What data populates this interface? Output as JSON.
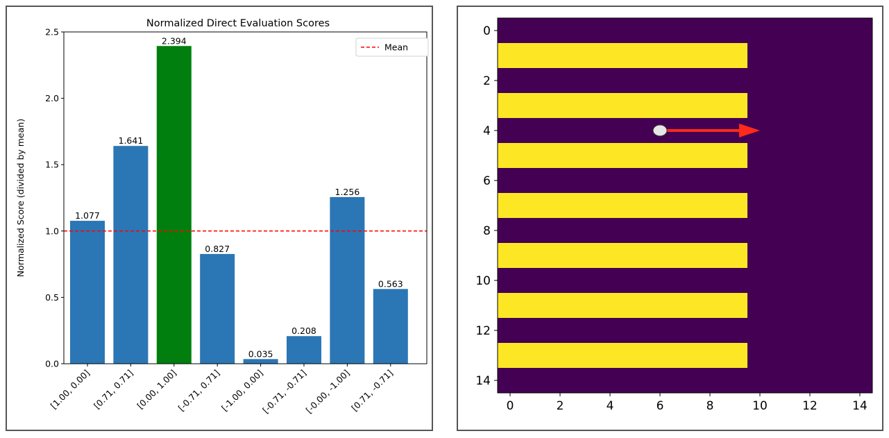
{
  "chart_data": [
    {
      "type": "bar",
      "title": "Normalized Direct Evaluation Scores",
      "xlabel": "",
      "ylabel": "Normalized Score (divided by mean)",
      "categories": [
        "[1.00, 0.00]",
        "[0.71, 0.71]",
        "[0.00, 1.00]",
        "[-0.71, 0.71]",
        "[-1.00, 0.00]",
        "[-0.71, -0.71]",
        "[-0.00, -1.00]",
        "[0.71, -0.71]"
      ],
      "values": [
        1.077,
        1.641,
        2.394,
        0.827,
        0.035,
        0.208,
        1.256,
        0.563
      ],
      "value_labels": [
        "1.077",
        "1.641",
        "2.394",
        "0.827",
        "0.035",
        "0.208",
        "1.256",
        "0.563"
      ],
      "colors": [
        "#2b76b4",
        "#2b76b4",
        "#007f0e",
        "#2b76b4",
        "#2b76b4",
        "#2b76b4",
        "#2b76b4",
        "#2b76b4"
      ],
      "ylim": [
        0,
        2.5
      ],
      "yticks": [
        0.0,
        0.5,
        1.0,
        1.5,
        2.0,
        2.5
      ],
      "ytick_labels": [
        "0.0",
        "0.5",
        "1.0",
        "1.5",
        "2.0",
        "2.5"
      ],
      "reference_line": {
        "label": "Mean",
        "value": 1.0,
        "color": "#ff0000",
        "style": "dashed"
      },
      "legend": {
        "position": "top-right",
        "entries": [
          "Mean"
        ]
      },
      "grid": false
    },
    {
      "type": "heatmap",
      "title": "",
      "xlabel": "",
      "ylabel": "",
      "grid_size": [
        15,
        15
      ],
      "xlim": [
        -0.5,
        14.5
      ],
      "ylim": [
        14.5,
        -0.5
      ],
      "xticks": [
        0,
        2,
        4,
        6,
        8,
        10,
        12,
        14
      ],
      "yticks": [
        0,
        2,
        4,
        6,
        8,
        10,
        12,
        14
      ],
      "tick_labels": [
        "0",
        "2",
        "4",
        "6",
        "8",
        "10",
        "12",
        "14"
      ],
      "background_value": 0,
      "bar_value": 1,
      "colormap": {
        "low": "#440154",
        "high": "#fde725"
      },
      "bars": [
        {
          "row": 1,
          "col_start": 0,
          "col_end": 9
        },
        {
          "row": 3,
          "col_start": 0,
          "col_end": 9
        },
        {
          "row": 5,
          "col_start": 0,
          "col_end": 9
        },
        {
          "row": 7,
          "col_start": 0,
          "col_end": 9
        },
        {
          "row": 9,
          "col_start": 0,
          "col_end": 9
        },
        {
          "row": 11,
          "col_start": 0,
          "col_end": 9
        },
        {
          "row": 13,
          "col_start": 0,
          "col_end": 9
        }
      ],
      "agent": {
        "x": 6,
        "y": 4,
        "color": "#e6e6e6"
      },
      "arrow": {
        "from": [
          6,
          4
        ],
        "to": [
          10,
          4
        ],
        "color": "#ff2a1a"
      }
    }
  ]
}
